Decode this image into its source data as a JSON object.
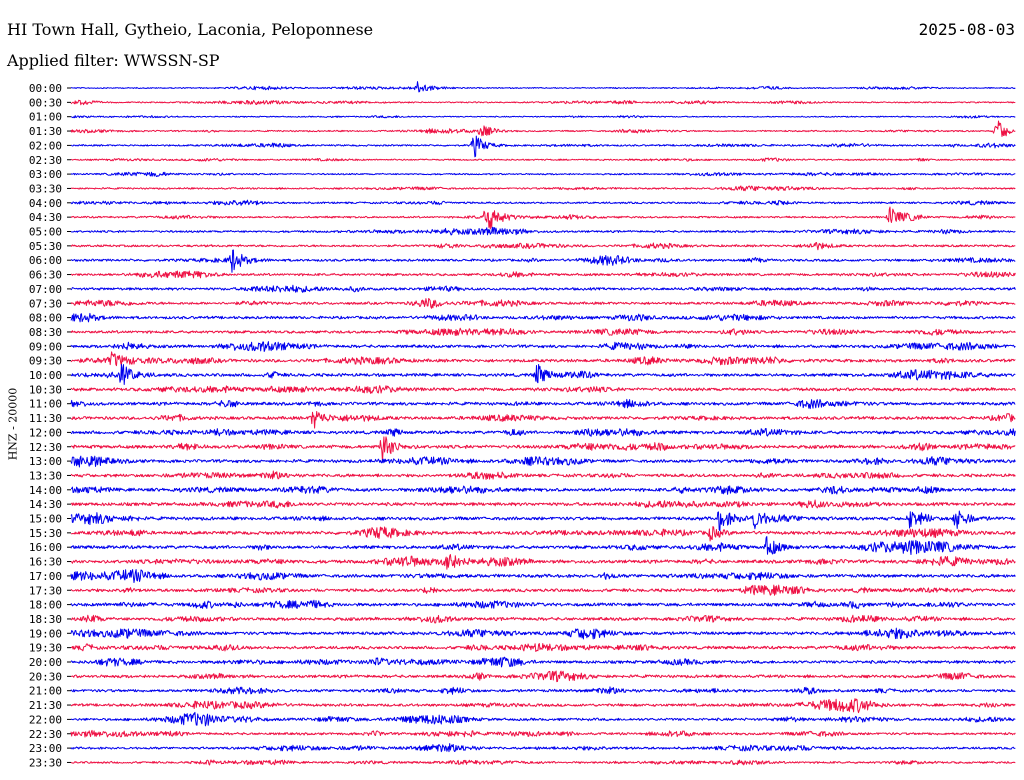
{
  "chart_data": {
    "type": "line",
    "title": "HI Town Hall, Gytheio, Laconia, Peloponnese",
    "date": "2025-08-03",
    "subtitle": "Applied filter: WWSSN-SP",
    "ylabel": "HNZ - 20000",
    "row_labels": [
      "00:00",
      "00:30",
      "01:00",
      "01:30",
      "02:00",
      "02:30",
      "03:00",
      "03:30",
      "04:00",
      "04:30",
      "05:00",
      "05:30",
      "06:00",
      "06:30",
      "07:00",
      "07:30",
      "08:00",
      "08:30",
      "09:00",
      "09:30",
      "10:00",
      "10:30",
      "11:00",
      "11:30",
      "12:00",
      "12:30",
      "13:00",
      "13:30",
      "14:00",
      "14:30",
      "15:00",
      "15:30",
      "16:00",
      "16:30",
      "17:00",
      "17:30",
      "18:00",
      "18:30",
      "19:00",
      "19:30",
      "20:00",
      "20:30",
      "21:00",
      "21:30",
      "22:00",
      "22:30",
      "23:00",
      "23:30"
    ],
    "colors": [
      "#0000ee",
      "#ee1144"
    ],
    "noise_level": [
      0.3,
      0.35,
      0.3,
      0.4,
      0.45,
      0.4,
      0.4,
      0.45,
      0.5,
      0.5,
      0.55,
      0.6,
      0.65,
      0.65,
      0.7,
      0.7,
      0.75,
      0.75,
      0.8,
      0.85,
      0.85,
      0.85,
      0.85,
      0.85,
      0.85,
      0.9,
      0.85,
      0.85,
      0.9,
      0.9,
      0.9,
      0.9,
      0.9,
      0.9,
      0.9,
      0.85,
      0.85,
      0.85,
      0.85,
      0.8,
      0.8,
      0.8,
      0.75,
      0.75,
      0.7,
      0.65,
      0.6,
      0.55
    ],
    "events": [
      {
        "row": 0,
        "minute": 11,
        "amp": 5
      },
      {
        "row": 3,
        "minute": 13,
        "amp": 5
      },
      {
        "row": 3,
        "minute": 29.4,
        "amp": 12
      },
      {
        "row": 4,
        "minute": 12.8,
        "amp": 12
      },
      {
        "row": 9,
        "minute": 13.2,
        "amp": 15
      },
      {
        "row": 9,
        "minute": 26,
        "amp": 10
      },
      {
        "row": 12,
        "minute": 5.1,
        "amp": 12
      },
      {
        "row": 19,
        "minute": 1.3,
        "amp": 6
      },
      {
        "row": 20,
        "minute": 1.6,
        "amp": 10
      },
      {
        "row": 20,
        "minute": 14.8,
        "amp": 11
      },
      {
        "row": 23,
        "minute": 7.7,
        "amp": 10
      },
      {
        "row": 25,
        "minute": 9.9,
        "amp": 15
      },
      {
        "row": 30,
        "minute": 20.6,
        "amp": 13
      },
      {
        "row": 30,
        "minute": 21.7,
        "amp": 8
      },
      {
        "row": 30,
        "minute": 26.6,
        "amp": 9
      },
      {
        "row": 30,
        "minute": 28.1,
        "amp": 12
      },
      {
        "row": 31,
        "minute": 20.3,
        "amp": 7
      },
      {
        "row": 32,
        "minute": 22.1,
        "amp": 11
      },
      {
        "row": 33,
        "minute": 11.9,
        "amp": 12
      }
    ]
  }
}
